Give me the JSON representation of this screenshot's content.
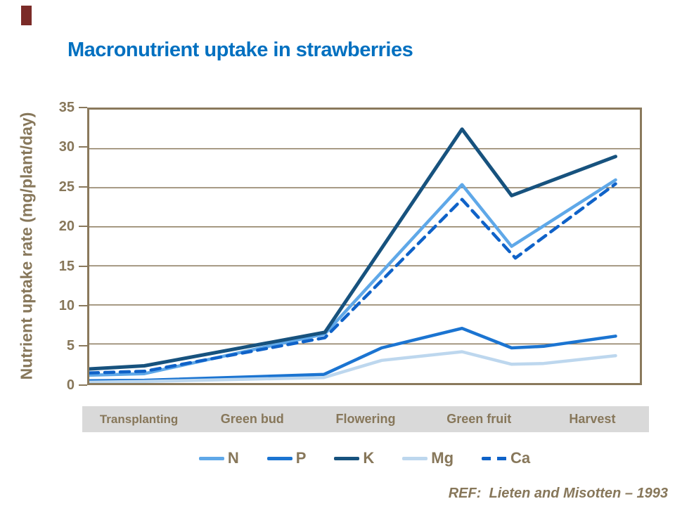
{
  "slide": {
    "title": "Macronutrient uptake in strawberries",
    "ref_text": "REF:  Lieten and Misotten – 1993"
  },
  "colors": {
    "title_blue": "#0070C0",
    "axis_brown": "#8A795C",
    "label_brown": "#87775A",
    "strip_gray": "#D9D9D9",
    "accent_marker_red": "#7B2B28",
    "series_N": "#5FA8E8",
    "series_P": "#1B74D1",
    "series_K": "#17527E",
    "series_Mg": "#BDD7EE",
    "series_Ca": "#0F62C8"
  },
  "chart_data": {
    "type": "line",
    "title": "Macronutrient uptake in strawberries",
    "xlabel": "",
    "ylabel": "Nutrient uptake rate (mg/plant/day)",
    "ylim": [
      0,
      35
    ],
    "yticks": [
      0,
      5,
      10,
      15,
      20,
      25,
      30,
      35
    ],
    "grid": "horizontal",
    "legend_position": "bottom",
    "categories": [
      "Transplanting",
      "Green bud",
      "Flowering",
      "Green fruit",
      "Harvest"
    ],
    "x_note": "x values are fractions of plot width (growth-stage timeline); stage labels span equal bands under the axis",
    "series": [
      {
        "name": "N",
        "color": "#5FA8E8",
        "dashed": false,
        "points": [
          [
            0.0,
            1.0
          ],
          [
            0.1,
            1.2
          ],
          [
            0.428,
            6.3
          ],
          [
            0.677,
            25.4
          ],
          [
            0.767,
            17.5
          ],
          [
            0.956,
            26.0
          ]
        ]
      },
      {
        "name": "P",
        "color": "#1B74D1",
        "dashed": false,
        "points": [
          [
            0.0,
            0.3
          ],
          [
            0.1,
            0.35
          ],
          [
            0.426,
            1.1
          ],
          [
            0.531,
            4.5
          ],
          [
            0.677,
            7.0
          ],
          [
            0.767,
            4.5
          ],
          [
            0.825,
            4.7
          ],
          [
            0.956,
            6.0
          ]
        ]
      },
      {
        "name": "K",
        "color": "#17527E",
        "dashed": false,
        "points": [
          [
            0.0,
            1.8
          ],
          [
            0.1,
            2.2
          ],
          [
            0.428,
            6.5
          ],
          [
            0.677,
            32.5
          ],
          [
            0.767,
            24.0
          ],
          [
            0.956,
            29.0
          ]
        ]
      },
      {
        "name": "Mg",
        "color": "#BDD7EE",
        "dashed": false,
        "points": [
          [
            0.0,
            0.1
          ],
          [
            0.1,
            0.2
          ],
          [
            0.426,
            0.7
          ],
          [
            0.531,
            2.9
          ],
          [
            0.677,
            4.0
          ],
          [
            0.767,
            2.4
          ],
          [
            0.825,
            2.5
          ],
          [
            0.956,
            3.5
          ]
        ]
      },
      {
        "name": "Ca",
        "color": "#0F62C8",
        "dashed": true,
        "points": [
          [
            0.0,
            1.3
          ],
          [
            0.1,
            1.5
          ],
          [
            0.428,
            5.8
          ],
          [
            0.677,
            23.5
          ],
          [
            0.774,
            16.0
          ],
          [
            0.956,
            25.5
          ]
        ]
      }
    ]
  }
}
